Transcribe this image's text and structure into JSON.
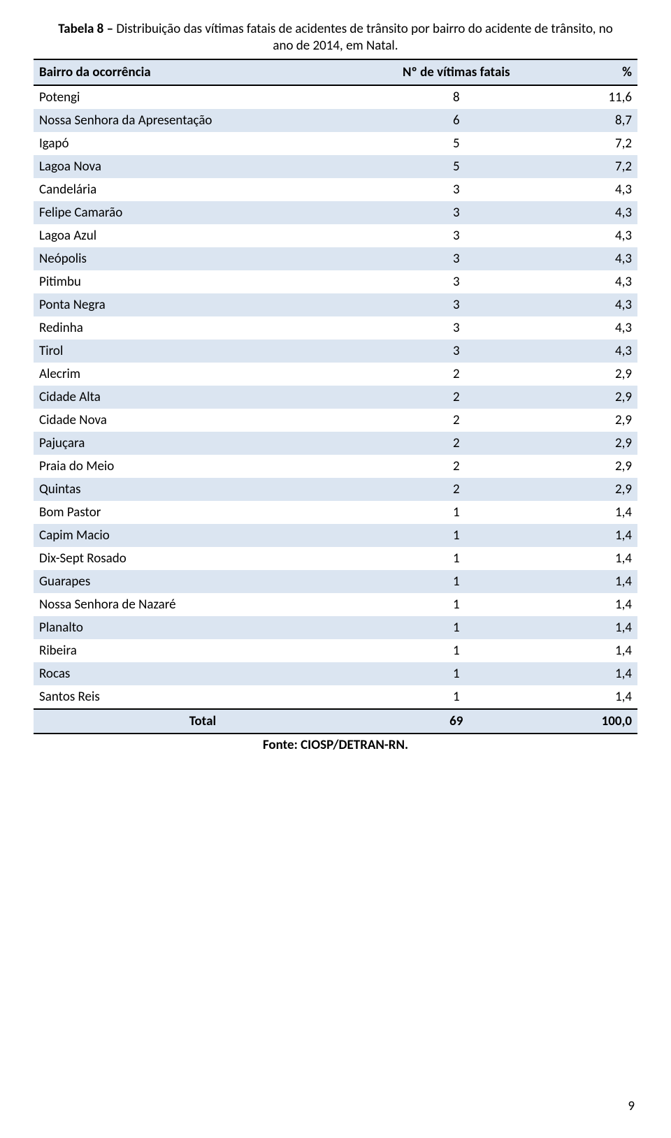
{
  "caption": {
    "label_bold": "Tabela 8 –",
    "text_line1": " Distribuição das vítimas fatais de acidentes de trânsito por bairro do acidente de trânsito, no",
    "text_line2": "ano de 2014, em Natal."
  },
  "table": {
    "headers": {
      "bairro": "Bairro da ocorrência",
      "n": "Nº de vítimas fatais",
      "pct": "%"
    },
    "rows": [
      {
        "bairro": "Potengi",
        "n": "8",
        "pct": "11,6"
      },
      {
        "bairro": "Nossa Senhora da Apresentação",
        "n": "6",
        "pct": "8,7"
      },
      {
        "bairro": "Igapó",
        "n": "5",
        "pct": "7,2"
      },
      {
        "bairro": "Lagoa Nova",
        "n": "5",
        "pct": "7,2"
      },
      {
        "bairro": "Candelária",
        "n": "3",
        "pct": "4,3"
      },
      {
        "bairro": "Felipe Camarão",
        "n": "3",
        "pct": "4,3"
      },
      {
        "bairro": "Lagoa Azul",
        "n": "3",
        "pct": "4,3"
      },
      {
        "bairro": "Neópolis",
        "n": "3",
        "pct": "4,3"
      },
      {
        "bairro": "Pitimbu",
        "n": "3",
        "pct": "4,3"
      },
      {
        "bairro": "Ponta Negra",
        "n": "3",
        "pct": "4,3"
      },
      {
        "bairro": "Redinha",
        "n": "3",
        "pct": "4,3"
      },
      {
        "bairro": "Tirol",
        "n": "3",
        "pct": "4,3"
      },
      {
        "bairro": "Alecrim",
        "n": "2",
        "pct": "2,9"
      },
      {
        "bairro": "Cidade Alta",
        "n": "2",
        "pct": "2,9"
      },
      {
        "bairro": "Cidade Nova",
        "n": "2",
        "pct": "2,9"
      },
      {
        "bairro": "Pajuçara",
        "n": "2",
        "pct": "2,9"
      },
      {
        "bairro": "Praia do Meio",
        "n": "2",
        "pct": "2,9"
      },
      {
        "bairro": "Quintas",
        "n": "2",
        "pct": "2,9"
      },
      {
        "bairro": "Bom Pastor",
        "n": "1",
        "pct": "1,4"
      },
      {
        "bairro": "Capim Macio",
        "n": "1",
        "pct": "1,4"
      },
      {
        "bairro": "Dix-Sept Rosado",
        "n": "1",
        "pct": "1,4"
      },
      {
        "bairro": "Guarapes",
        "n": "1",
        "pct": "1,4"
      },
      {
        "bairro": "Nossa Senhora de Nazaré",
        "n": "1",
        "pct": "1,4"
      },
      {
        "bairro": "Planalto",
        "n": "1",
        "pct": "1,4"
      },
      {
        "bairro": "Ribeira",
        "n": "1",
        "pct": "1,4"
      },
      {
        "bairro": "Rocas",
        "n": "1",
        "pct": "1,4"
      },
      {
        "bairro": "Santos Reis",
        "n": "1",
        "pct": "1,4"
      }
    ],
    "total": {
      "label": "Total",
      "n": "69",
      "pct": "100,0"
    }
  },
  "source": "Fonte: CIOSP/DETRAN-RN.",
  "page_number": "9",
  "style": {
    "stripe_color": "#dbe5f1",
    "border_color": "#000000",
    "font_family": "Calibri",
    "font_size_pt": 14
  }
}
